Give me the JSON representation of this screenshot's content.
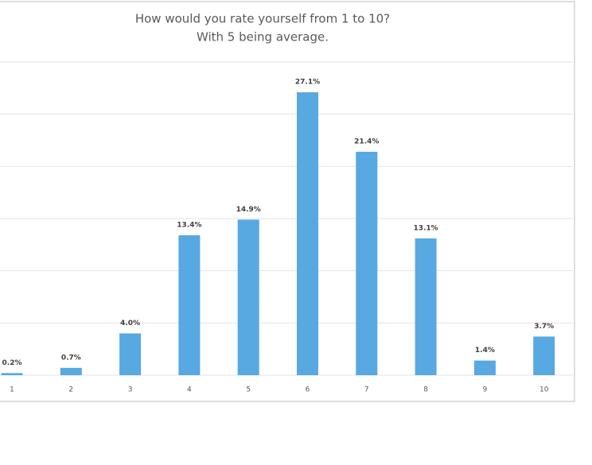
{
  "chart_data": {
    "type": "bar",
    "title": [
      "How would you rate yourself from 1 to 10?",
      "With 5 being average."
    ],
    "categories": [
      "1",
      "2",
      "3",
      "4",
      "5",
      "6",
      "7",
      "8",
      "9",
      "10"
    ],
    "values": [
      0.2,
      0.7,
      4,
      13.4,
      14.9,
      27.1,
      21.4,
      13.1,
      1.4,
      3.7
    ],
    "value_labels": [
      "0.2%",
      "0.7%",
      "4.0%",
      "13.4%",
      "14.9%",
      "27.1%",
      "21.4%",
      "13.1%",
      "1.4%",
      "3.7%"
    ],
    "color": "#58a8e2",
    "ylim": [
      0,
      30
    ],
    "yticks": [
      0,
      5,
      10,
      15,
      20,
      25,
      30
    ],
    "grid": true
  }
}
